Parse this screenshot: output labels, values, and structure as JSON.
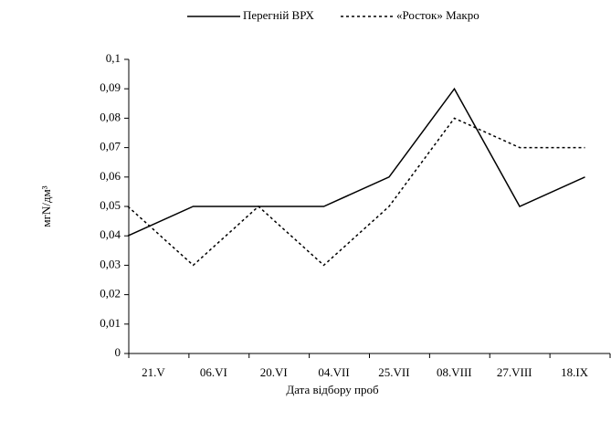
{
  "chart_data": {
    "type": "line",
    "y_label": "мгN/дм³",
    "x_label": "Дата відбору проб",
    "categories": [
      "21.V",
      "06.VI",
      "20.VI",
      "04.VII",
      "25.VII",
      "08.VIII",
      "27.VIII",
      "18.IX"
    ],
    "series": [
      {
        "name": "Перегній ВРХ",
        "color": "#000000",
        "dash": "solid",
        "values": [
          0.04,
          0.05,
          0.05,
          0.05,
          0.06,
          0.09,
          0.05,
          0.06
        ]
      },
      {
        "name": "«Росток» Макро",
        "color": "#000000",
        "dash": "dotted",
        "values": [
          0.05,
          0.03,
          0.05,
          0.03,
          0.05,
          0.08,
          0.07,
          0.07
        ]
      }
    ],
    "ylim": [
      0,
      0.1
    ],
    "yticks": [
      0,
      {
        "value": 0.01,
        "label": "0,01"
      },
      {
        "value": 0.02,
        "label": "0,02"
      },
      {
        "value": 0.03,
        "label": "0,03"
      },
      {
        "value": 0.04,
        "label": "0,04"
      },
      {
        "value": 0.05,
        "label": "0,05"
      },
      {
        "value": 0.06,
        "label": "0,06"
      },
      {
        "value": 0.07,
        "label": "0,07"
      },
      {
        "value": 0.08,
        "label": "0,08"
      },
      {
        "value": 0.09,
        "label": "0,09"
      },
      {
        "value": 0.1,
        "label": "0,1"
      }
    ],
    "grid": false,
    "legend": "top"
  }
}
